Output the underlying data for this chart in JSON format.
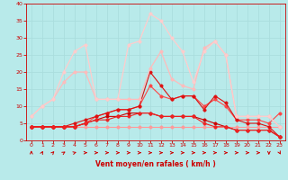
{
  "x": [
    0,
    1,
    2,
    3,
    4,
    5,
    6,
    7,
    8,
    9,
    10,
    11,
    12,
    13,
    14,
    15,
    16,
    17,
    18,
    19,
    20,
    21,
    22,
    23
  ],
  "series": [
    {
      "color": "#ff9999",
      "linewidth": 0.8,
      "markersize": 2.5,
      "y": [
        4,
        4,
        4,
        4,
        4,
        4,
        4,
        4,
        4,
        4,
        4,
        4,
        4,
        4,
        4,
        4,
        4,
        4,
        4,
        4,
        4,
        4,
        4,
        4
      ]
    },
    {
      "color": "#ff4444",
      "linewidth": 0.8,
      "markersize": 2.5,
      "y": [
        4,
        4,
        4,
        4,
        4,
        5,
        7,
        8,
        9,
        9,
        10,
        16,
        13,
        12,
        13,
        13,
        10,
        12,
        10,
        6,
        6,
        6,
        5,
        8
      ]
    },
    {
      "color": "#dd1111",
      "linewidth": 0.8,
      "markersize": 2.5,
      "y": [
        4,
        4,
        4,
        4,
        5,
        6,
        7,
        8,
        9,
        9,
        10,
        20,
        16,
        12,
        13,
        13,
        9,
        13,
        11,
        6,
        5,
        5,
        4,
        1
      ]
    },
    {
      "color": "#cc0000",
      "linewidth": 0.8,
      "markersize": 2.5,
      "y": [
        4,
        4,
        4,
        4,
        4,
        5,
        6,
        7,
        7,
        8,
        8,
        8,
        7,
        7,
        7,
        7,
        6,
        5,
        4,
        3,
        3,
        3,
        3,
        1
      ]
    },
    {
      "color": "#ee2222",
      "linewidth": 0.8,
      "markersize": 2.5,
      "y": [
        4,
        4,
        4,
        4,
        4,
        5,
        6,
        6,
        7,
        7,
        8,
        8,
        7,
        7,
        7,
        7,
        5,
        4,
        4,
        3,
        3,
        3,
        3,
        1
      ]
    },
    {
      "color": "#ffbbbb",
      "linewidth": 0.9,
      "markersize": 2.5,
      "y": [
        7,
        10,
        12,
        17,
        20,
        20,
        12,
        12,
        12,
        12,
        12,
        21,
        26,
        18,
        16,
        15,
        27,
        29,
        25,
        7,
        7,
        7,
        7,
        4
      ]
    },
    {
      "color": "#ffcccc",
      "linewidth": 0.9,
      "markersize": 2.5,
      "y": [
        7,
        10,
        12,
        20,
        26,
        28,
        12,
        12,
        12,
        28,
        29,
        37,
        35,
        30,
        26,
        17,
        26,
        29,
        25,
        7,
        7,
        7,
        7,
        4
      ]
    }
  ],
  "xlabel": "Vent moyen/en rafales ( km/h )",
  "xlim": [
    -0.5,
    23.5
  ],
  "ylim": [
    0,
    40
  ],
  "xticks": [
    0,
    1,
    2,
    3,
    4,
    5,
    6,
    7,
    8,
    9,
    10,
    11,
    12,
    13,
    14,
    15,
    16,
    17,
    18,
    19,
    20,
    21,
    22,
    23
  ],
  "yticks": [
    0,
    5,
    10,
    15,
    20,
    25,
    30,
    35,
    40
  ],
  "bg_color": "#b8eaea",
  "grid_color": "#aadddd",
  "tick_color": "#cc0000",
  "label_color": "#cc0000"
}
